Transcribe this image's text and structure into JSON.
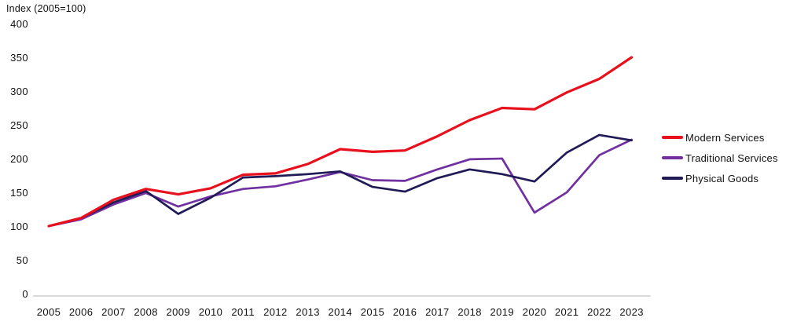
{
  "header": {
    "axis_note": "Index (2005=100)"
  },
  "colors": {
    "modern_services": "#e9101d",
    "traditional_services": "#7030a0",
    "physical_goods": "#201a57",
    "axis_line": "#d9d9d9",
    "text": "#111111"
  },
  "chart_data": {
    "type": "line",
    "title": "",
    "ylabel": "Index (2005=100)",
    "xlabel": "",
    "ylim": [
      0,
      400
    ],
    "yticks": [
      400,
      350,
      300,
      250,
      200,
      150,
      100,
      50,
      0
    ],
    "grid": false,
    "legend_position": "right",
    "categories": [
      "2005",
      "2006",
      "2007",
      "2008",
      "2009",
      "2010",
      "2011",
      "2012",
      "2013",
      "2014",
      "2015",
      "2016",
      "2017",
      "2018",
      "2019",
      "2020",
      "2021",
      "2022",
      "2023"
    ],
    "series": [
      {
        "name": "Modern Services",
        "color": "#e9101d",
        "values": [
          100,
          112,
          139,
          155,
          147,
          156,
          176,
          178,
          192,
          214,
          210,
          212,
          233,
          257,
          275,
          273,
          298,
          318,
          350
        ]
      },
      {
        "name": "Traditional Services",
        "color": "#7030a0",
        "values": [
          100,
          110,
          132,
          149,
          129,
          144,
          155,
          159,
          169,
          180,
          168,
          167,
          184,
          199,
          200,
          120,
          150,
          205,
          228
        ]
      },
      {
        "name": "Physical Goods",
        "color": "#201a57",
        "values": [
          100,
          112,
          135,
          152,
          118,
          142,
          172,
          174,
          177,
          181,
          158,
          151,
          171,
          184,
          177,
          166,
          209,
          235,
          227
        ]
      }
    ]
  },
  "legend": {
    "items": [
      "Modern Services",
      "Traditional Services",
      "Physical Goods"
    ]
  }
}
